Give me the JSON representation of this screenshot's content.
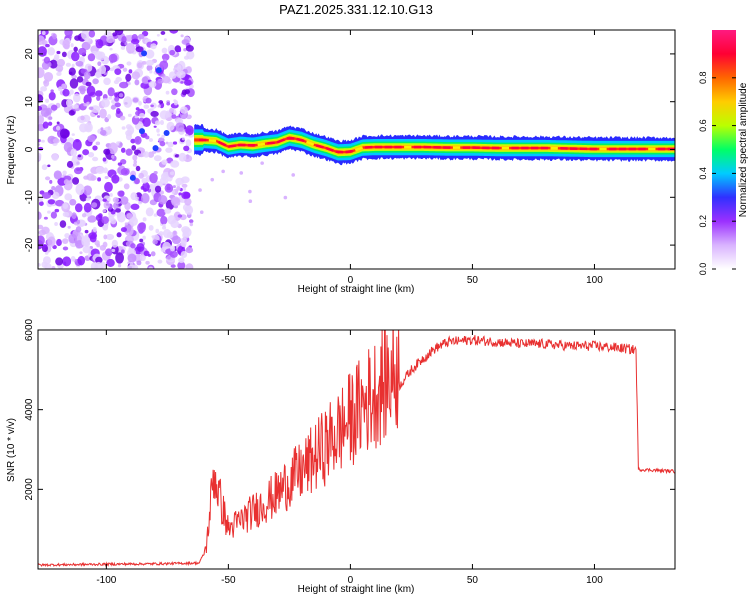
{
  "title": "PAZ1.2025.331.12.10.G13",
  "chart_data": [
    {
      "type": "heatmap",
      "xlabel": "Height of straight line (km)",
      "ylabel": "Frequency (Hz)",
      "xlim": [
        -128,
        133
      ],
      "ylim": [
        -25,
        25
      ],
      "xticks": [
        -100,
        -50,
        0,
        50,
        100
      ],
      "yticks": [
        -20,
        -10,
        0,
        10,
        20
      ],
      "colorbar": {
        "label": "Normalized spectral amplitude",
        "range": [
          0,
          1
        ],
        "ticks": [
          0.0,
          0.2,
          0.4,
          0.6,
          0.8
        ],
        "tick_labels": [
          "0.0",
          "0.2",
          "0.4",
          "0.6",
          "0.8"
        ],
        "colors": [
          "#ffffff",
          "#d9b3ff",
          "#9b30ff",
          "#3030ff",
          "#00ccff",
          "#00ff66",
          "#bbff00",
          "#ffcc00",
          "#ff6600",
          "#ff0033",
          "#ff1a80"
        ]
      },
      "noise_region_x": [
        -128,
        -65
      ],
      "ridge": [
        {
          "x": -64,
          "f": 2.0
        },
        {
          "x": -60,
          "f": 2.0
        },
        {
          "x": -55,
          "f": 1.8
        },
        {
          "x": -50,
          "f": 0.6
        },
        {
          "x": -45,
          "f": 1.0
        },
        {
          "x": -40,
          "f": 0.8
        },
        {
          "x": -35,
          "f": 1.2
        },
        {
          "x": -30,
          "f": 1.5
        },
        {
          "x": -25,
          "f": 2.5
        },
        {
          "x": -20,
          "f": 2.0
        },
        {
          "x": -15,
          "f": 1.0
        },
        {
          "x": -10,
          "f": 0.3
        },
        {
          "x": -5,
          "f": -0.6
        },
        {
          "x": 0,
          "f": -0.5
        },
        {
          "x": 5,
          "f": 0.4
        },
        {
          "x": 10,
          "f": 0.5
        },
        {
          "x": 20,
          "f": 0.5
        },
        {
          "x": 30,
          "f": 0.5
        },
        {
          "x": 40,
          "f": 0.4
        },
        {
          "x": 50,
          "f": 0.4
        },
        {
          "x": 60,
          "f": 0.3
        },
        {
          "x": 70,
          "f": 0.3
        },
        {
          "x": 80,
          "f": 0.3
        },
        {
          "x": 90,
          "f": 0.2
        },
        {
          "x": 100,
          "f": 0.1
        },
        {
          "x": 110,
          "f": 0.1
        },
        {
          "x": 120,
          "f": 0.1
        },
        {
          "x": 133,
          "f": 0.1
        }
      ]
    },
    {
      "type": "line",
      "xlabel": "Height of straight line (km)",
      "ylabel": "SNR (10 * v/v)",
      "xlim": [
        -128,
        133
      ],
      "ylim": [
        0,
        6000
      ],
      "xticks": [
        -100,
        -50,
        0,
        50,
        100
      ],
      "yticks": [
        2000,
        4000,
        6000
      ],
      "line_color": "#e83030",
      "series": [
        {
          "name": "SNR",
          "points": [
            {
              "x": -128,
              "y": 100
            },
            {
              "x": -100,
              "y": 120
            },
            {
              "x": -80,
              "y": 130
            },
            {
              "x": -62,
              "y": 150
            },
            {
              "x": -59,
              "y": 500
            },
            {
              "x": -56,
              "y": 2200
            },
            {
              "x": -53,
              "y": 1500
            },
            {
              "x": -50,
              "y": 900
            },
            {
              "x": -45,
              "y": 1100
            },
            {
              "x": -40,
              "y": 1300
            },
            {
              "x": -35,
              "y": 1500
            },
            {
              "x": -30,
              "y": 1700
            },
            {
              "x": -25,
              "y": 2000
            },
            {
              "x": -20,
              "y": 2200
            },
            {
              "x": -15,
              "y": 2500
            },
            {
              "x": -10,
              "y": 2800
            },
            {
              "x": -5,
              "y": 3100
            },
            {
              "x": 0,
              "y": 3400
            },
            {
              "x": 5,
              "y": 3700
            },
            {
              "x": 10,
              "y": 4000
            },
            {
              "x": 15,
              "y": 4300
            },
            {
              "x": 20,
              "y": 4600
            },
            {
              "x": 25,
              "y": 5000
            },
            {
              "x": 30,
              "y": 5300
            },
            {
              "x": 35,
              "y": 5550
            },
            {
              "x": 40,
              "y": 5700
            },
            {
              "x": 50,
              "y": 5750
            },
            {
              "x": 60,
              "y": 5700
            },
            {
              "x": 70,
              "y": 5650
            },
            {
              "x": 80,
              "y": 5650
            },
            {
              "x": 90,
              "y": 5600
            },
            {
              "x": 100,
              "y": 5600
            },
            {
              "x": 110,
              "y": 5550
            },
            {
              "x": 117,
              "y": 5500
            },
            {
              "x": 118,
              "y": 2500
            },
            {
              "x": 125,
              "y": 2480
            },
            {
              "x": 133,
              "y": 2450
            }
          ]
        }
      ]
    }
  ]
}
